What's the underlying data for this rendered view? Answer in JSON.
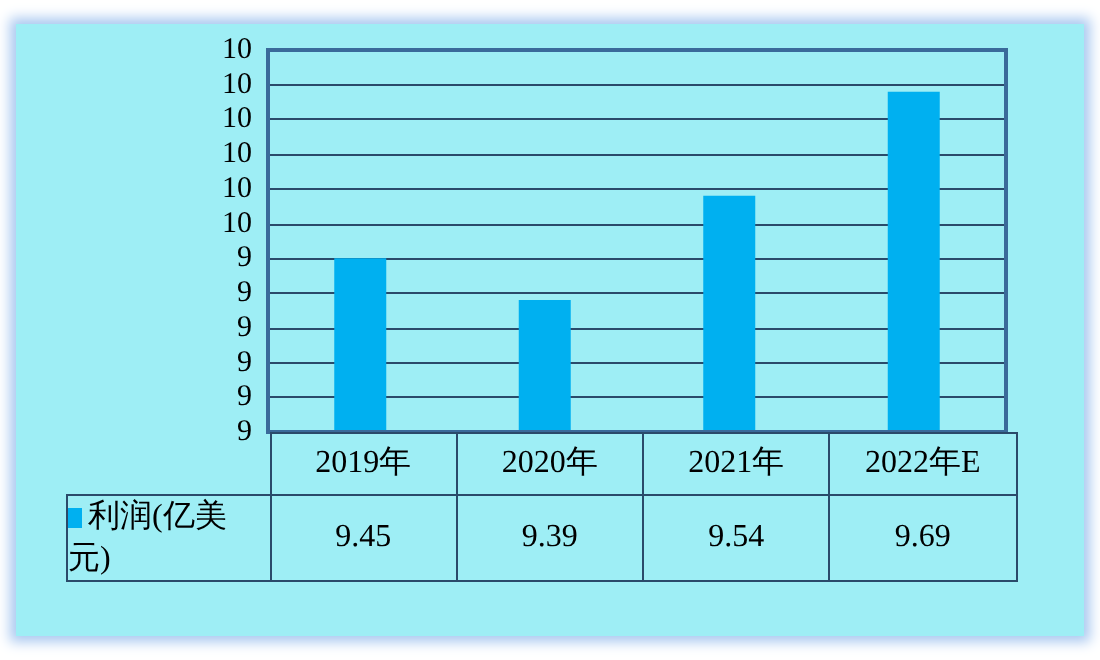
{
  "chart_data": {
    "type": "bar",
    "categories": [
      "2019年",
      "2020年",
      "2021年",
      "2022年E"
    ],
    "series": [
      {
        "name": "利润(亿美元)",
        "color": "#00b0f0",
        "values": [
          9.45,
          9.39,
          9.54,
          9.69
        ]
      }
    ],
    "ylim": [
      9.2,
      9.75
    ],
    "yticks": [
      {
        "value": 9.2,
        "label": "9"
      },
      {
        "value": 9.25,
        "label": "9"
      },
      {
        "value": 9.3,
        "label": "9"
      },
      {
        "value": 9.35,
        "label": "9"
      },
      {
        "value": 9.4,
        "label": "9"
      },
      {
        "value": 9.45,
        "label": "9"
      },
      {
        "value": 9.5,
        "label": "10"
      },
      {
        "value": 9.55,
        "label": "10"
      },
      {
        "value": 9.6,
        "label": "10"
      },
      {
        "value": 9.65,
        "label": "10"
      },
      {
        "value": 9.7,
        "label": "10"
      },
      {
        "value": 9.75,
        "label": "10"
      }
    ],
    "grid": "y",
    "legend": "bottom left",
    "data_labels": true
  }
}
